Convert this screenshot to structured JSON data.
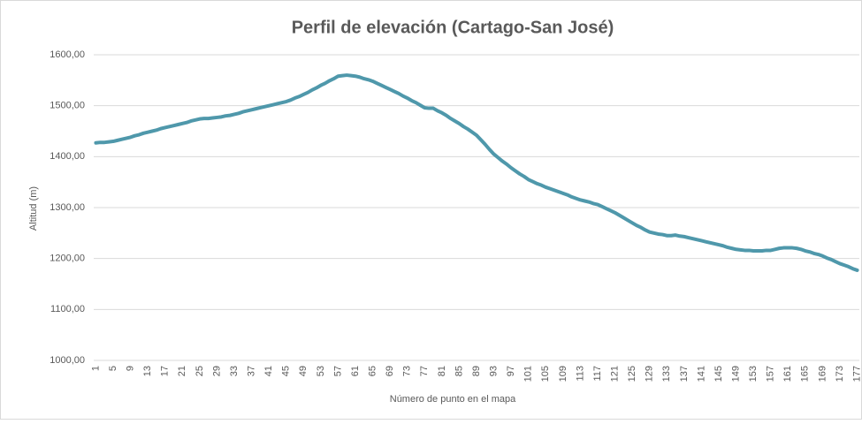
{
  "chart_data": {
    "type": "line",
    "title": "Perfil de elevación (Cartago-San José)",
    "x_label": "Número de punto en el mapa",
    "y_label": "Altitud (m)",
    "categories": [
      1,
      null,
      null,
      null,
      5,
      null,
      null,
      null,
      9,
      null,
      null,
      null,
      13,
      null,
      null,
      null,
      17,
      null,
      null,
      null,
      21,
      null,
      null,
      null,
      25,
      null,
      null,
      null,
      29,
      null,
      null,
      null,
      33,
      null,
      null,
      null,
      37,
      null,
      null,
      null,
      41,
      null,
      null,
      null,
      45,
      null,
      null,
      null,
      49,
      null,
      null,
      null,
      53,
      null,
      null,
      null,
      57,
      null,
      null,
      null,
      61,
      null,
      null,
      null,
      65,
      null,
      null,
      null,
      69,
      null,
      null,
      null,
      73,
      null,
      null,
      null,
      77,
      null,
      null,
      null,
      81,
      null,
      null,
      null,
      85,
      null,
      null,
      null,
      89,
      null,
      null,
      null,
      93,
      null,
      null,
      null,
      97,
      null,
      null,
      null,
      101,
      null,
      null,
      null,
      105,
      null,
      null,
      null,
      109,
      null,
      null,
      null,
      113,
      null,
      null,
      null,
      117,
      null,
      null,
      null,
      121,
      null,
      null,
      null,
      125,
      null,
      null,
      null,
      129,
      null,
      null,
      null,
      133,
      null,
      null,
      null,
      137,
      null,
      null,
      null,
      141,
      null,
      null,
      null,
      145,
      null,
      null,
      null,
      149,
      null,
      null,
      null,
      153,
      null,
      null,
      null,
      157,
      null,
      null,
      null,
      161,
      null,
      null,
      null,
      165,
      null,
      null,
      null,
      169,
      null,
      null,
      null,
      173,
      null,
      null,
      null,
      177
    ],
    "values": [
      1427,
      1428,
      1428,
      1429,
      1430,
      1432,
      1434,
      1436,
      1438,
      1441,
      1443,
      1446,
      1448,
      1450,
      1452,
      1455,
      1457,
      1459,
      1461,
      1463,
      1465,
      1467,
      1470,
      1472,
      1474,
      1475,
      1475,
      1476,
      1477,
      1478,
      1480,
      1481,
      1483,
      1485,
      1488,
      1490,
      1492,
      1494,
      1496,
      1498,
      1500,
      1502,
      1504,
      1506,
      1508,
      1511,
      1515,
      1518,
      1522,
      1526,
      1531,
      1535,
      1540,
      1544,
      1549,
      1553,
      1558,
      1559,
      1560,
      1559,
      1558,
      1556,
      1553,
      1551,
      1548,
      1544,
      1540,
      1536,
      1532,
      1528,
      1524,
      1519,
      1515,
      1510,
      1506,
      1501,
      1496,
      1495,
      1495,
      1490,
      1486,
      1481,
      1475,
      1470,
      1465,
      1459,
      1454,
      1448,
      1442,
      1433,
      1424,
      1414,
      1405,
      1398,
      1391,
      1385,
      1378,
      1372,
      1366,
      1361,
      1355,
      1351,
      1347,
      1344,
      1340,
      1337,
      1334,
      1331,
      1328,
      1325,
      1321,
      1318,
      1315,
      1313,
      1311,
      1308,
      1306,
      1302,
      1298,
      1294,
      1290,
      1285,
      1280,
      1275,
      1270,
      1265,
      1261,
      1256,
      1252,
      1250,
      1248,
      1247,
      1245,
      1245,
      1246,
      1244,
      1243,
      1241,
      1239,
      1237,
      1235,
      1233,
      1231,
      1229,
      1227,
      1225,
      1222,
      1220,
      1218,
      1217,
      1216,
      1216,
      1215,
      1215,
      1215,
      1216,
      1216,
      1218,
      1220,
      1221,
      1221,
      1221,
      1220,
      1218,
      1215,
      1213,
      1210,
      1208,
      1205,
      1201,
      1198,
      1194,
      1190,
      1187,
      1184,
      1180,
      1177
    ],
    "color": "#4f98ab",
    "ylim": [
      1000,
      1600
    ],
    "yticks": [
      {
        "value": 1000,
        "label": "1000,00"
      },
      {
        "value": 1100,
        "label": "1100,00"
      },
      {
        "value": 1200,
        "label": "1200,00"
      },
      {
        "value": 1300,
        "label": "1300,00"
      },
      {
        "value": 1400,
        "label": "1400,00"
      },
      {
        "value": 1500,
        "label": "1500,00"
      },
      {
        "value": 1600,
        "label": "1600,00"
      }
    ],
    "grid": true
  }
}
